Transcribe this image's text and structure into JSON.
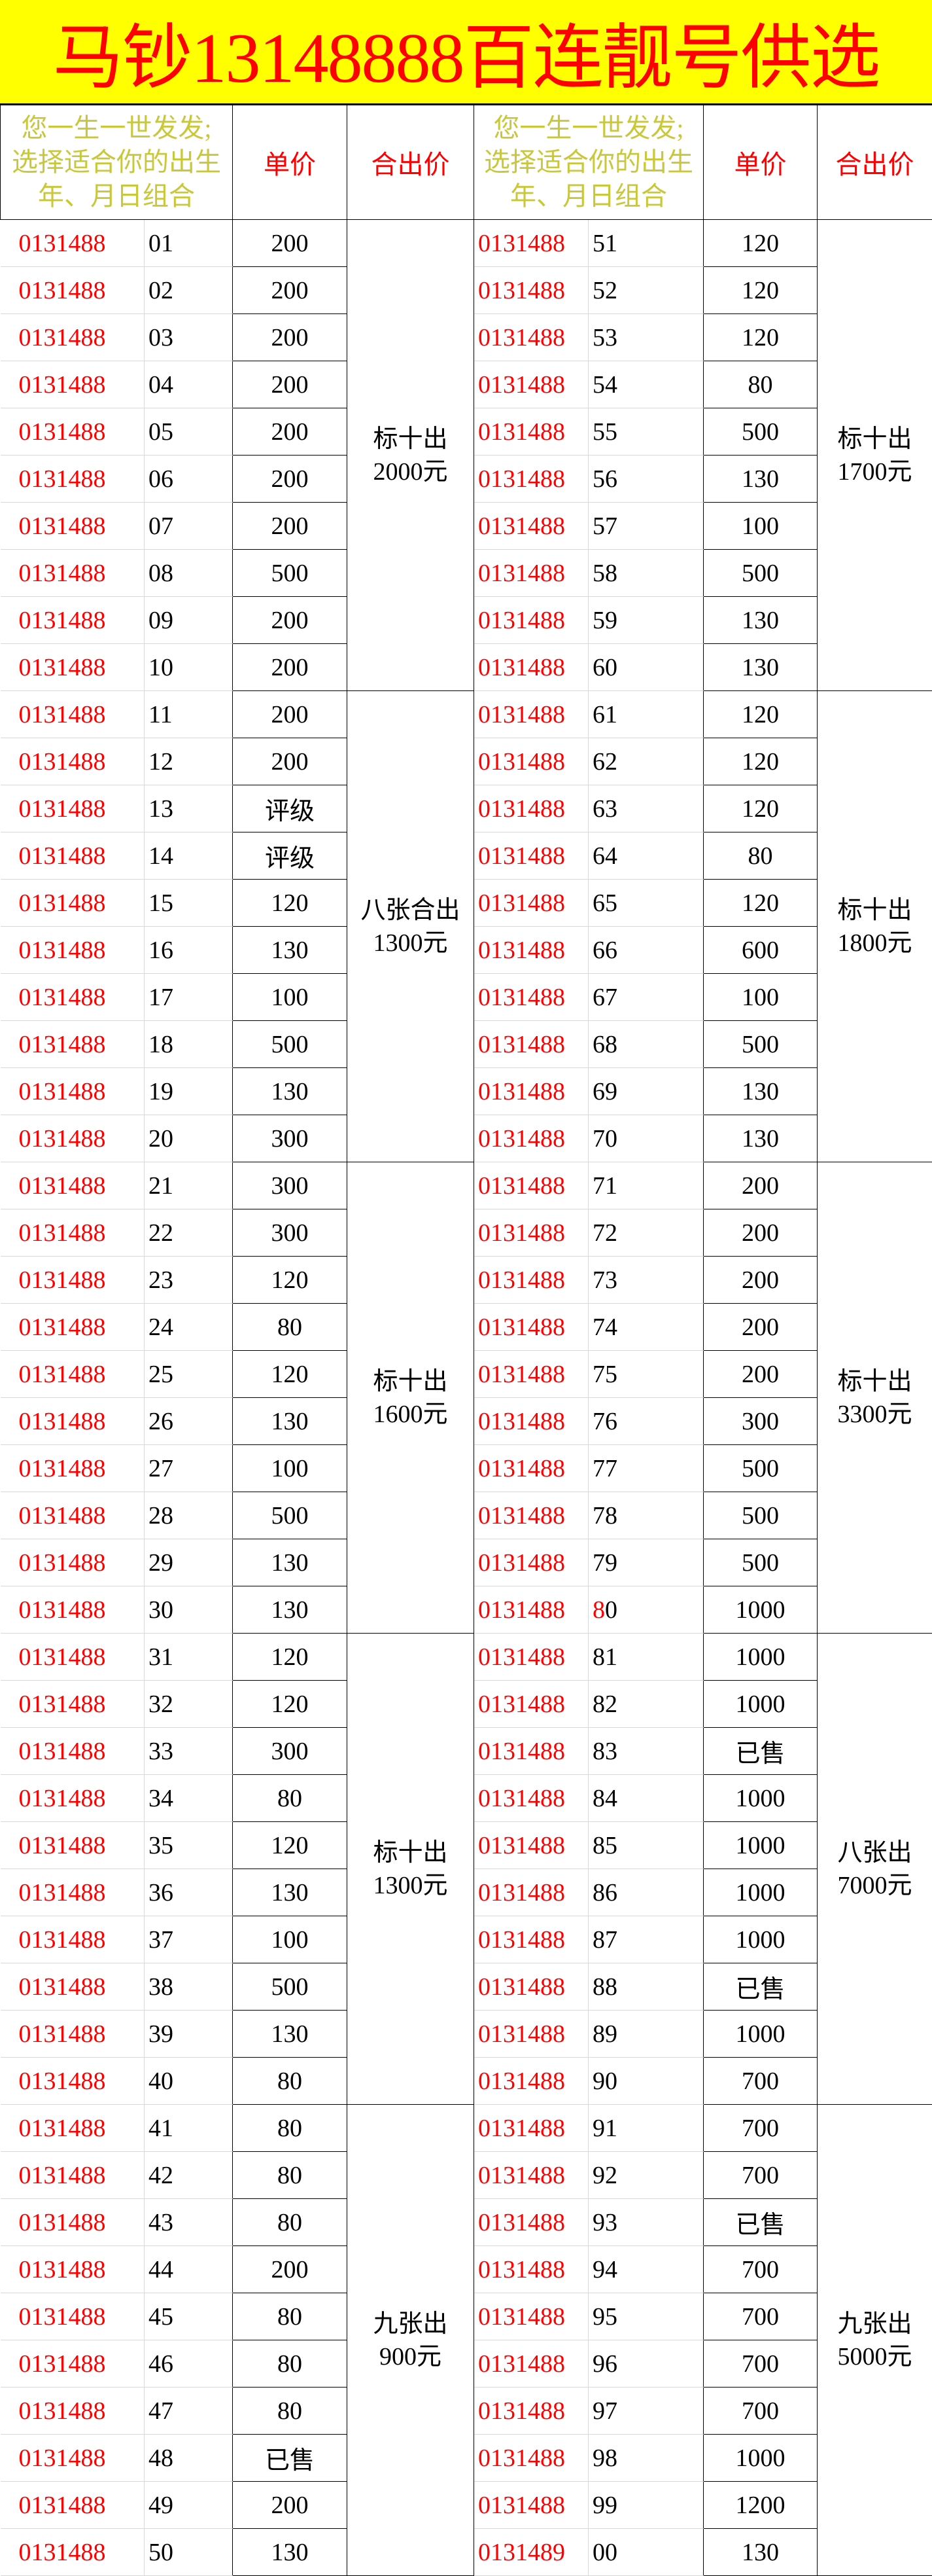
{
  "title": "马钞13148888百连靓号供选",
  "headers": {
    "hint_lines": [
      "您一生一世发发;",
      "选择适合你的出生",
      "年、月日组合"
    ],
    "unit_price": "单价",
    "group_price": "合出价"
  },
  "colors": {
    "title_bg": "#ffff00",
    "title_text": "#ff0000",
    "prefix_text": "#ff0000",
    "hint_text": "#c8c83a"
  },
  "left": {
    "items": [
      {
        "prefix": "0131488",
        "suffix": "01",
        "price": "200"
      },
      {
        "prefix": "0131488",
        "suffix": "02",
        "price": "200"
      },
      {
        "prefix": "0131488",
        "suffix": "03",
        "price": "200"
      },
      {
        "prefix": "0131488",
        "suffix": "04",
        "price": "200"
      },
      {
        "prefix": "0131488",
        "suffix": "05",
        "price": "200"
      },
      {
        "prefix": "0131488",
        "suffix": "06",
        "price": "200"
      },
      {
        "prefix": "0131488",
        "suffix": "07",
        "price": "200"
      },
      {
        "prefix": "0131488",
        "suffix": "08",
        "price": "500"
      },
      {
        "prefix": "0131488",
        "suffix": "09",
        "price": "200"
      },
      {
        "prefix": "0131488",
        "suffix": "10",
        "price": "200"
      },
      {
        "prefix": "0131488",
        "suffix": "11",
        "price": "200"
      },
      {
        "prefix": "0131488",
        "suffix": "12",
        "price": "200"
      },
      {
        "prefix": "0131488",
        "suffix": "13",
        "price": "评级"
      },
      {
        "prefix": "0131488",
        "suffix": "14",
        "price": "评级"
      },
      {
        "prefix": "0131488",
        "suffix": "15",
        "price": "120"
      },
      {
        "prefix": "0131488",
        "suffix": "16",
        "price": "130"
      },
      {
        "prefix": "0131488",
        "suffix": "17",
        "price": "100"
      },
      {
        "prefix": "0131488",
        "suffix": "18",
        "price": "500"
      },
      {
        "prefix": "0131488",
        "suffix": "19",
        "price": "130"
      },
      {
        "prefix": "0131488",
        "suffix": "20",
        "price": "300"
      },
      {
        "prefix": "0131488",
        "suffix": "21",
        "price": "300"
      },
      {
        "prefix": "0131488",
        "suffix": "22",
        "price": "300"
      },
      {
        "prefix": "0131488",
        "suffix": "23",
        "price": "120"
      },
      {
        "prefix": "0131488",
        "suffix": "24",
        "price": "80"
      },
      {
        "prefix": "0131488",
        "suffix": "25",
        "price": "120"
      },
      {
        "prefix": "0131488",
        "suffix": "26",
        "price": "130"
      },
      {
        "prefix": "0131488",
        "suffix": "27",
        "price": "100"
      },
      {
        "prefix": "0131488",
        "suffix": "28",
        "price": "500"
      },
      {
        "prefix": "0131488",
        "suffix": "29",
        "price": "130"
      },
      {
        "prefix": "0131488",
        "suffix": "30",
        "price": "130"
      },
      {
        "prefix": "0131488",
        "suffix": "31",
        "price": "120"
      },
      {
        "prefix": "0131488",
        "suffix": "32",
        "price": "120"
      },
      {
        "prefix": "0131488",
        "suffix": "33",
        "price": "300"
      },
      {
        "prefix": "0131488",
        "suffix": "34",
        "price": "80"
      },
      {
        "prefix": "0131488",
        "suffix": "35",
        "price": "120"
      },
      {
        "prefix": "0131488",
        "suffix": "36",
        "price": "130"
      },
      {
        "prefix": "0131488",
        "suffix": "37",
        "price": "100"
      },
      {
        "prefix": "0131488",
        "suffix": "38",
        "price": "500"
      },
      {
        "prefix": "0131488",
        "suffix": "39",
        "price": "130"
      },
      {
        "prefix": "0131488",
        "suffix": "40",
        "price": "80"
      },
      {
        "prefix": "0131488",
        "suffix": "41",
        "price": "80"
      },
      {
        "prefix": "0131488",
        "suffix": "42",
        "price": "80"
      },
      {
        "prefix": "0131488",
        "suffix": "43",
        "price": "80"
      },
      {
        "prefix": "0131488",
        "suffix": "44",
        "price": "200"
      },
      {
        "prefix": "0131488",
        "suffix": "45",
        "price": "80"
      },
      {
        "prefix": "0131488",
        "suffix": "46",
        "price": "80"
      },
      {
        "prefix": "0131488",
        "suffix": "47",
        "price": "80"
      },
      {
        "prefix": "0131488",
        "suffix": "48",
        "price": "已售"
      },
      {
        "prefix": "0131488",
        "suffix": "49",
        "price": "200"
      },
      {
        "prefix": "0131488",
        "suffix": "50",
        "price": "130"
      }
    ],
    "groups": [
      {
        "line1": "标十出",
        "line2": "2000元"
      },
      {
        "line1": "八张合出",
        "line2": "1300元"
      },
      {
        "line1": "标十出",
        "line2": "1600元"
      },
      {
        "line1": "标十出",
        "line2": "1300元"
      },
      {
        "line1": "九张出",
        "line2": "900元"
      }
    ]
  },
  "right": {
    "items": [
      {
        "prefix": "0131488",
        "suffix": "51",
        "price": "120"
      },
      {
        "prefix": "0131488",
        "suffix": "52",
        "price": "120"
      },
      {
        "prefix": "0131488",
        "suffix": "53",
        "price": "120"
      },
      {
        "prefix": "0131488",
        "suffix": "54",
        "price": "80"
      },
      {
        "prefix": "0131488",
        "suffix": "55",
        "price": "500"
      },
      {
        "prefix": "0131488",
        "suffix": "56",
        "price": "130"
      },
      {
        "prefix": "0131488",
        "suffix": "57",
        "price": "100"
      },
      {
        "prefix": "0131488",
        "suffix": "58",
        "price": "500"
      },
      {
        "prefix": "0131488",
        "suffix": "59",
        "price": "130"
      },
      {
        "prefix": "0131488",
        "suffix": "60",
        "price": "130"
      },
      {
        "prefix": "0131488",
        "suffix": "61",
        "price": "120"
      },
      {
        "prefix": "0131488",
        "suffix": "62",
        "price": "120"
      },
      {
        "prefix": "0131488",
        "suffix": "63",
        "price": "120"
      },
      {
        "prefix": "0131488",
        "suffix": "64",
        "price": "80"
      },
      {
        "prefix": "0131488",
        "suffix": "65",
        "price": "120"
      },
      {
        "prefix": "0131488",
        "suffix": "66",
        "price": "600"
      },
      {
        "prefix": "0131488",
        "suffix": "67",
        "price": "100"
      },
      {
        "prefix": "0131488",
        "suffix": "68",
        "price": "500"
      },
      {
        "prefix": "0131488",
        "suffix": "69",
        "price": "130"
      },
      {
        "prefix": "0131488",
        "suffix": "70",
        "price": "130"
      },
      {
        "prefix": "0131488",
        "suffix": "71",
        "price": "200"
      },
      {
        "prefix": "0131488",
        "suffix": "72",
        "price": "200"
      },
      {
        "prefix": "0131488",
        "suffix": "73",
        "price": "200"
      },
      {
        "prefix": "0131488",
        "suffix": "74",
        "price": "200"
      },
      {
        "prefix": "0131488",
        "suffix": "75",
        "price": "200"
      },
      {
        "prefix": "0131488",
        "suffix": "76",
        "price": "300"
      },
      {
        "prefix": "0131488",
        "suffix": "77",
        "price": "500"
      },
      {
        "prefix": "0131488",
        "suffix": "78",
        "price": "500"
      },
      {
        "prefix": "0131488",
        "suffix": "79",
        "price": "500"
      },
      {
        "prefix": "0131488",
        "suffix": "80",
        "suffix_red": "8",
        "suffix_rest": "0",
        "price": "1000"
      },
      {
        "prefix": "0131488",
        "suffix": "81",
        "price": "1000"
      },
      {
        "prefix": "0131488",
        "suffix": "82",
        "price": "1000"
      },
      {
        "prefix": "0131488",
        "suffix": "83",
        "price": "已售"
      },
      {
        "prefix": "0131488",
        "suffix": "84",
        "price": "1000"
      },
      {
        "prefix": "0131488",
        "suffix": "85",
        "price": "1000"
      },
      {
        "prefix": "0131488",
        "suffix": "86",
        "price": "1000"
      },
      {
        "prefix": "0131488",
        "suffix": "87",
        "price": "1000"
      },
      {
        "prefix": "0131488",
        "suffix": "88",
        "price": "已售"
      },
      {
        "prefix": "0131488",
        "suffix": "89",
        "price": "1000"
      },
      {
        "prefix": "0131488",
        "suffix": "90",
        "price": "700"
      },
      {
        "prefix": "0131488",
        "suffix": "91",
        "price": "700"
      },
      {
        "prefix": "0131488",
        "suffix": "92",
        "price": "700"
      },
      {
        "prefix": "0131488",
        "suffix": "93",
        "price": "已售"
      },
      {
        "prefix": "0131488",
        "suffix": "94",
        "price": "700"
      },
      {
        "prefix": "0131488",
        "suffix": "95",
        "price": "700"
      },
      {
        "prefix": "0131488",
        "suffix": "96",
        "price": "700"
      },
      {
        "prefix": "0131488",
        "suffix": "97",
        "price": "700"
      },
      {
        "prefix": "0131488",
        "suffix": "98",
        "price": "1000"
      },
      {
        "prefix": "0131488",
        "suffix": "99",
        "price": "1200"
      },
      {
        "prefix": "0131489",
        "suffix": "00",
        "price": "130"
      }
    ],
    "groups": [
      {
        "line1": "标十出",
        "line2": "1700元"
      },
      {
        "line1": "标十出",
        "line2": "1800元"
      },
      {
        "line1": "标十出",
        "line2": "3300元"
      },
      {
        "line1": "八张出",
        "line2": "7000元"
      },
      {
        "line1": "九张出",
        "line2": "5000元"
      }
    ]
  }
}
